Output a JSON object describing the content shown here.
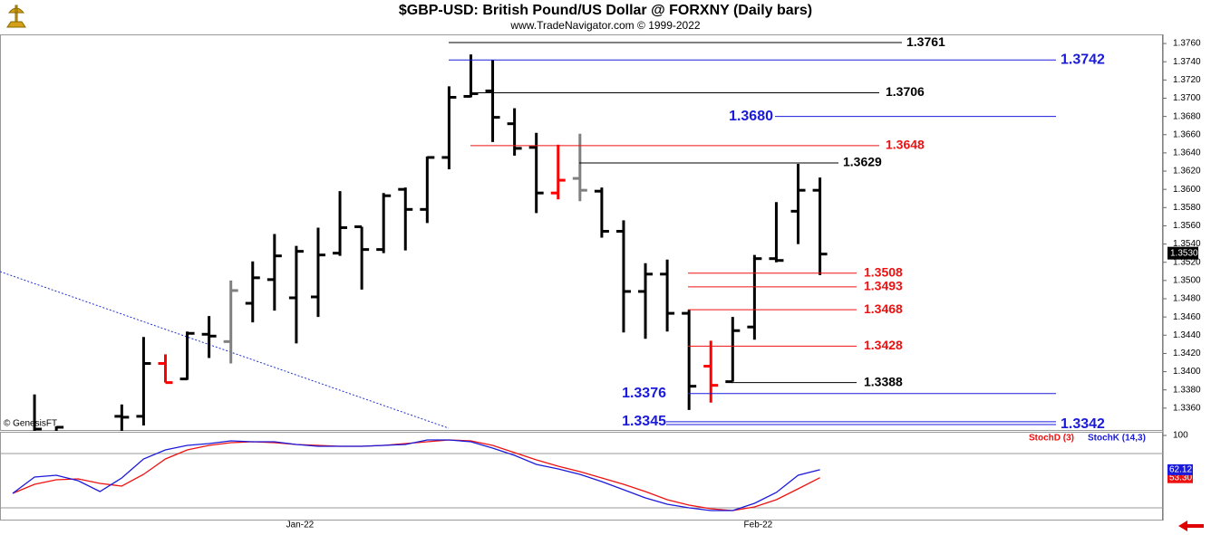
{
  "chart_data": [
    {
      "type": "ohlc",
      "title": "$GBP-USD:  British Pound/US Dollar @ FORXNY  (Daily bars)",
      "subtitle": "www.TradeNavigator.com © 1999-2022",
      "watermark": "© GenesisFT",
      "categories": [
        null,
        null,
        null,
        null,
        null,
        null,
        null,
        null,
        null,
        null,
        null,
        null,
        null,
        "Jan-22",
        null,
        null,
        null,
        null,
        null,
        null,
        null,
        null,
        null,
        null,
        null,
        null,
        null,
        null,
        null,
        null,
        null,
        null,
        null,
        null,
        "Feb-22",
        null,
        null,
        null
      ],
      "open": [
        null,
        1.333,
        1.333,
        null,
        null,
        1.3351,
        1.3351,
        1.3409,
        1.3392,
        1.3441,
        1.3433,
        1.3475,
        1.3501,
        1.3481,
        1.3482,
        1.353,
        1.3559,
        1.3534,
        1.36,
        1.3578,
        1.3635,
        1.3702,
        1.3708,
        1.3672,
        1.3646,
        1.3596,
        1.3612,
        1.3598,
        1.3554,
        1.3488,
        1.3507,
        1.3464,
        1.3406,
        1.3389,
        1.3449,
        1.3524,
        1.3576,
        1.3599
      ],
      "high": [
        null,
        1.3375,
        1.334,
        null,
        null,
        1.3364,
        1.3438,
        1.3419,
        1.3444,
        1.3461,
        1.35,
        1.3521,
        1.3551,
        1.3538,
        1.3558,
        1.3598,
        1.3559,
        1.3596,
        1.3602,
        1.3636,
        1.3713,
        1.3748,
        1.3742,
        1.3689,
        1.3662,
        1.3649,
        1.3661,
        1.3602,
        1.3566,
        1.3519,
        1.3523,
        1.3468,
        1.3434,
        1.346,
        1.3528,
        1.3586,
        1.3628,
        1.3613
      ],
      "low": [
        null,
        1.333,
        1.3325,
        null,
        null,
        1.333,
        1.3341,
        1.3388,
        1.3391,
        1.3415,
        1.3409,
        1.3454,
        1.3467,
        1.3431,
        1.346,
        1.3527,
        1.349,
        1.353,
        1.3533,
        1.3563,
        1.3622,
        1.3701,
        1.3652,
        1.3637,
        1.3574,
        1.3589,
        1.3587,
        1.3547,
        1.3443,
        1.3436,
        1.3444,
        1.3358,
        1.3366,
        1.3389,
        1.3435,
        1.352,
        1.354,
        1.3506
      ],
      "close": [
        null,
        1.3337,
        1.3339,
        null,
        null,
        1.335,
        1.3409,
        1.3388,
        1.3442,
        1.3439,
        1.3489,
        1.3503,
        1.3527,
        1.3532,
        1.3528,
        1.3558,
        1.3534,
        1.3593,
        1.3578,
        1.3635,
        1.3701,
        1.3705,
        1.3679,
        1.3645,
        1.3596,
        1.361,
        1.3599,
        1.3554,
        1.3488,
        1.3507,
        1.3464,
        1.3384,
        1.3385,
        1.3445,
        1.3524,
        1.3522,
        1.3599,
        1.3529
      ],
      "colors": [
        "#000000",
        "#000000",
        "#000000",
        "#000000",
        "#000000",
        "#000000",
        "#000000",
        "#ff0000",
        "#000000",
        "#000000",
        "#808080",
        "#000000",
        "#000000",
        "#000000",
        "#000000",
        "#000000",
        "#000000",
        "#000000",
        "#000000",
        "#000000",
        "#000000",
        "#000000",
        "#000000",
        "#000000",
        "#000000",
        "#ff0000",
        "#808080",
        "#000000",
        "#000000",
        "#000000",
        "#000000",
        "#000000",
        "#ff0000",
        "#000000",
        "#000000",
        "#000000",
        "#000000",
        "#000000"
      ],
      "ylim": [
        1.3335,
        1.377
      ],
      "yticks": [
        {
          "value": 1.336,
          "label": "1.3360"
        },
        {
          "value": 1.338,
          "label": "1.3380"
        },
        {
          "value": 1.34,
          "label": "1.3400"
        },
        {
          "value": 1.342,
          "label": "1.3420"
        },
        {
          "value": 1.344,
          "label": "1.3440"
        },
        {
          "value": 1.346,
          "label": "1.3460"
        },
        {
          "value": 1.348,
          "label": "1.3480"
        },
        {
          "value": 1.35,
          "label": "1.3500"
        },
        {
          "value": 1.352,
          "label": "1.3520"
        },
        {
          "value": 1.354,
          "label": "1.3540"
        },
        {
          "value": 1.356,
          "label": "1.3560"
        },
        {
          "value": 1.358,
          "label": "1.3580"
        },
        {
          "value": 1.36,
          "label": "1.3600"
        },
        {
          "value": 1.362,
          "label": "1.3620"
        },
        {
          "value": 1.364,
          "label": "1.3640"
        },
        {
          "value": 1.366,
          "label": "1.3660"
        },
        {
          "value": 1.368,
          "label": "1.3680"
        },
        {
          "value": 1.37,
          "label": "1.3700"
        },
        {
          "value": 1.372,
          "label": "1.3720"
        },
        {
          "value": 1.374,
          "label": "1.3740"
        },
        {
          "value": 1.376,
          "label": "1.3760"
        }
      ],
      "last_price": {
        "value": 1.353,
        "label": "1.3530"
      },
      "levels": [
        {
          "value": 1.3761,
          "label": "1.3761",
          "color": "#000000"
        },
        {
          "value": 1.3742,
          "label": "1.3742",
          "color": "#1a1adc"
        },
        {
          "value": 1.3706,
          "label": "1.3706",
          "color": "#000000"
        },
        {
          "value": 1.368,
          "label": "1.3680",
          "color": "#1a1adc"
        },
        {
          "value": 1.3648,
          "label": "1.3648",
          "color": "#ee1111"
        },
        {
          "value": 1.3629,
          "label": "1.3629",
          "color": "#000000"
        },
        {
          "value": 1.3508,
          "label": "1.3508",
          "color": "#ee1111"
        },
        {
          "value": 1.3493,
          "label": "1.3493",
          "color": "#ee1111"
        },
        {
          "value": 1.3468,
          "label": "1.3468",
          "color": "#ee1111"
        },
        {
          "value": 1.3428,
          "label": "1.3428",
          "color": "#ee1111"
        },
        {
          "value": 1.3388,
          "label": "1.3388",
          "color": "#000000"
        },
        {
          "value": 1.3376,
          "label": "1.3376",
          "color": "#1a1adc"
        },
        {
          "value": 1.3345,
          "label": "1.3345",
          "color": "#1a1adc"
        },
        {
          "value": 1.3342,
          "label": "1.3342",
          "color": "#1a1adc"
        }
      ]
    },
    {
      "type": "line",
      "ylim": [
        5,
        100
      ],
      "yticks": [
        100
      ],
      "guide_lines": [
        80,
        20
      ],
      "series": [
        {
          "name": "StochD (3)",
          "color": "#ee1111",
          "values": [
            36,
            46,
            51,
            52,
            47,
            44,
            57,
            74,
            84,
            89,
            92,
            93,
            92,
            90,
            89,
            88,
            88,
            89,
            91,
            93,
            95,
            94,
            89,
            81,
            73,
            66,
            60,
            53,
            46,
            38,
            29,
            23,
            19,
            17,
            21,
            29,
            41,
            53.3
          ],
          "value_labels": [
            null,
            null,
            null,
            null,
            null,
            null,
            null,
            null,
            null,
            null,
            null,
            null,
            null,
            null,
            null,
            null,
            null,
            null,
            null,
            null,
            null,
            null,
            null,
            null,
            null,
            null,
            null,
            null,
            null,
            null,
            null,
            null,
            null,
            null,
            null,
            null,
            null,
            "53.30"
          ]
        },
        {
          "name": "StochK (14,3)",
          "color": "#1a1adc",
          "values": [
            36,
            54,
            56,
            50,
            38,
            53,
            74,
            84,
            89,
            91,
            94,
            93,
            93,
            90,
            88,
            88,
            88,
            89,
            90,
            95,
            95,
            93,
            86,
            78,
            68,
            63,
            57,
            49,
            40,
            31,
            24,
            20,
            17,
            17,
            25,
            37,
            56,
            62.12
          ],
          "value_labels": [
            null,
            null,
            null,
            null,
            null,
            null,
            null,
            null,
            null,
            null,
            null,
            null,
            null,
            null,
            null,
            null,
            null,
            null,
            null,
            null,
            null,
            null,
            null,
            null,
            null,
            null,
            null,
            null,
            null,
            null,
            null,
            null,
            null,
            null,
            null,
            null,
            null,
            "62.12"
          ]
        }
      ]
    }
  ]
}
